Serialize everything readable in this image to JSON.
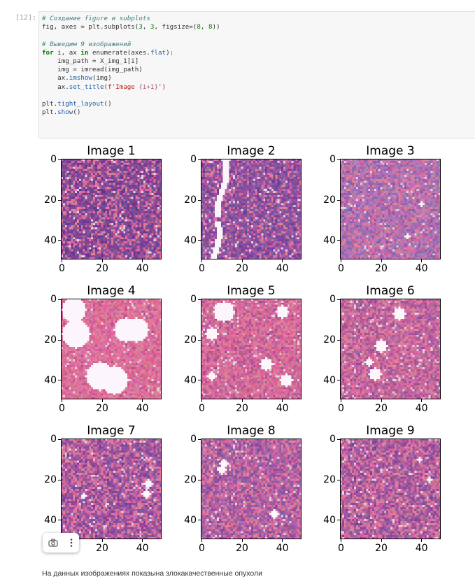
{
  "cell": {
    "prompt": "[12]:",
    "code_lines": [
      [
        {
          "t": "# Создание figure и subplots",
          "c": "comment"
        }
      ],
      [
        {
          "t": "fig, axes = plt.subplots(",
          "c": ""
        },
        {
          "t": "3",
          "c": "num"
        },
        {
          "t": ", ",
          "c": ""
        },
        {
          "t": "3",
          "c": "num"
        },
        {
          "t": ", figsize=(",
          "c": ""
        },
        {
          "t": "8",
          "c": "num"
        },
        {
          "t": ", ",
          "c": ""
        },
        {
          "t": "8",
          "c": "num"
        },
        {
          "t": "))",
          "c": ""
        }
      ],
      [
        {
          "t": "",
          "c": ""
        }
      ],
      [
        {
          "t": "# Выведим 9 изображений",
          "c": "comment"
        }
      ],
      [
        {
          "t": "for",
          "c": "kw"
        },
        {
          "t": " i, ax ",
          "c": ""
        },
        {
          "t": "in",
          "c": "kw"
        },
        {
          "t": " enumerate(axes.",
          "c": ""
        },
        {
          "t": "flat",
          "c": "attr"
        },
        {
          "t": "):",
          "c": ""
        }
      ],
      [
        {
          "t": "    img_path = X_img_1[i]",
          "c": ""
        }
      ],
      [
        {
          "t": "    img = imread(img_path)",
          "c": ""
        }
      ],
      [
        {
          "t": "    ax.",
          "c": ""
        },
        {
          "t": "imshow",
          "c": "attr"
        },
        {
          "t": "(img)",
          "c": ""
        }
      ],
      [
        {
          "t": "    ax.",
          "c": ""
        },
        {
          "t": "set_title",
          "c": "attr"
        },
        {
          "t": "(f'Image ",
          "c": "str"
        },
        {
          "t": "{i+1}",
          "c": "interp"
        },
        {
          "t": "')",
          "c": "str"
        }
      ],
      [
        {
          "t": "",
          "c": ""
        }
      ],
      [
        {
          "t": "plt.",
          "c": ""
        },
        {
          "t": "tight_layout",
          "c": "attr"
        },
        {
          "t": "()",
          "c": ""
        }
      ],
      [
        {
          "t": "plt.",
          "c": ""
        },
        {
          "t": "show",
          "c": "attr"
        },
        {
          "t": "()",
          "c": ""
        }
      ]
    ]
  },
  "figure": {
    "panels": [
      {
        "title": "Image 1",
        "style": "dense",
        "blobs": []
      },
      {
        "title": "Image 2",
        "style": "streak",
        "blobs": []
      },
      {
        "title": "Image 3",
        "style": "light",
        "blobs": []
      },
      {
        "title": "Image 4",
        "style": "pink",
        "blobs": []
      },
      {
        "title": "Image 5",
        "style": "pinkmix",
        "blobs": []
      },
      {
        "title": "Image 6",
        "style": "mixed",
        "blobs": []
      },
      {
        "title": "Image 7",
        "style": "dense2",
        "blobs": []
      },
      {
        "title": "Image 8",
        "style": "mixed2",
        "blobs": []
      },
      {
        "title": "Image 9",
        "style": "dense3",
        "blobs": []
      }
    ],
    "y_ticks": [
      "0",
      "20",
      "40"
    ],
    "x_ticks": [
      "0",
      "20",
      "40"
    ]
  },
  "output_toolbar": {
    "icons": [
      "camera-icon",
      "more-icon"
    ]
  },
  "markdown_text": "На данных изображениях показына злокакачественные опухоли"
}
